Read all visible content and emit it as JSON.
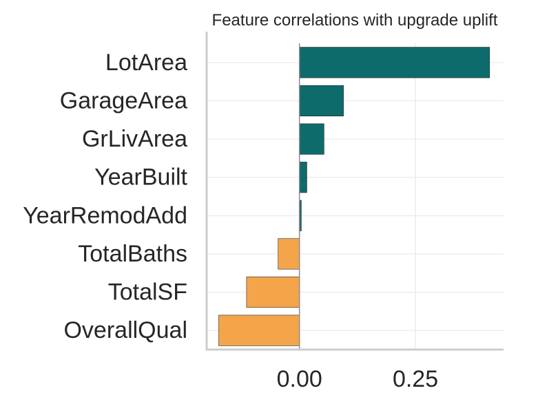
{
  "chart_data": {
    "type": "bar",
    "orientation": "horizontal",
    "title": "Feature correlations with upgrade uplift",
    "xlabel": "",
    "ylabel": "",
    "categories": [
      "LotArea",
      "GarageArea",
      "GrLivArea",
      "YearBuilt",
      "YearRemodAdd",
      "TotalBaths",
      "TotalSF",
      "OverallQual"
    ],
    "values": [
      0.41,
      0.095,
      0.053,
      0.016,
      0.004,
      -0.046,
      -0.114,
      -0.174
    ],
    "xlim": [
      -0.2,
      0.44
    ],
    "xticks": [
      0.0,
      0.25
    ],
    "xtick_labels": [
      "0.00",
      "0.25"
    ],
    "colors": {
      "positive": "#0e6b6b",
      "negative": "#f4a54a",
      "zero_line": "#8c8c8c",
      "grid": "#ededed",
      "spine": "#cccccc",
      "bar_edge": "#262626"
    },
    "grid": true
  }
}
